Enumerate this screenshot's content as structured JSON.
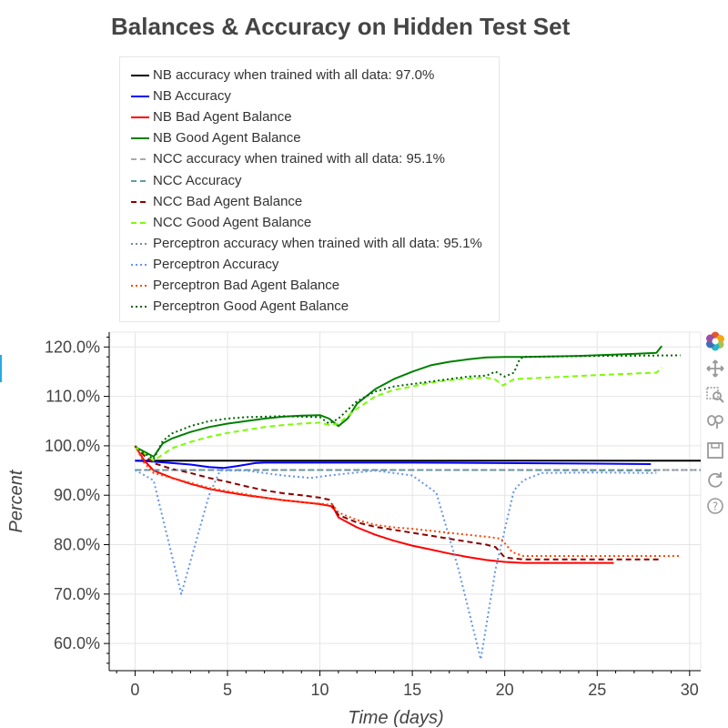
{
  "chart_data": {
    "type": "line",
    "title": "Balances & Accuracy on Hidden Test Set",
    "xlabel": "Time (days)",
    "ylabel": "Percent",
    "xlim": [
      -1.4,
      30.6
    ],
    "ylim": [
      54.5,
      123.0
    ],
    "x_ticks": [
      0,
      5,
      10,
      15,
      20,
      25,
      30
    ],
    "y_ticks": [
      60,
      70,
      80,
      90,
      100,
      110,
      120
    ],
    "y_tick_suffix": "%",
    "grid": true,
    "legend_position": "top-left, above plot",
    "series": [
      {
        "name": "NB accuracy when trained with all data: 97.0%",
        "color": "#000000",
        "dash": "solid",
        "points": [
          [
            0,
            97.0
          ],
          [
            30.6,
            97.0
          ]
        ]
      },
      {
        "name": "NB Accuracy",
        "color": "#0000ff",
        "dash": "solid",
        "points": [
          [
            0,
            97.0
          ],
          [
            1,
            96.8
          ],
          [
            2,
            96.5
          ],
          [
            3,
            96.2
          ],
          [
            4,
            95.7
          ],
          [
            4.8,
            95.5
          ],
          [
            5.5,
            95.9
          ],
          [
            6.5,
            96.5
          ],
          [
            7,
            96.6
          ],
          [
            10,
            96.6
          ],
          [
            15,
            96.6
          ],
          [
            20,
            96.5
          ],
          [
            25,
            96.4
          ],
          [
            27.9,
            96.3
          ]
        ]
      },
      {
        "name": "NB Bad Agent Balance",
        "color": "#ff0000",
        "dash": "solid",
        "points": [
          [
            0,
            100.0
          ],
          [
            0.5,
            97.0
          ],
          [
            1,
            95.0
          ],
          [
            2,
            93.5
          ],
          [
            3,
            92.3
          ],
          [
            4,
            91.3
          ],
          [
            5,
            90.6
          ],
          [
            6,
            90.0
          ],
          [
            7,
            89.5
          ],
          [
            8,
            89.0
          ],
          [
            9,
            88.6
          ],
          [
            10,
            88.2
          ],
          [
            10.6,
            87.8
          ],
          [
            10.8,
            87.0
          ],
          [
            11,
            85.5
          ],
          [
            12,
            83.5
          ],
          [
            13,
            82.0
          ],
          [
            14,
            80.8
          ],
          [
            15,
            79.8
          ],
          [
            16,
            79.0
          ],
          [
            17,
            78.2
          ],
          [
            18,
            77.5
          ],
          [
            19,
            76.9
          ],
          [
            20,
            76.5
          ],
          [
            21,
            76.3
          ],
          [
            25.9,
            76.3
          ]
        ]
      },
      {
        "name": "NB Good Agent Balance",
        "color": "#008000",
        "dash": "solid",
        "points": [
          [
            0,
            99.8
          ],
          [
            0.5,
            98.8
          ],
          [
            1,
            97.8
          ],
          [
            1.5,
            100.5
          ],
          [
            2,
            101.5
          ],
          [
            3,
            102.8
          ],
          [
            4,
            103.8
          ],
          [
            5,
            104.5
          ],
          [
            6,
            105.0
          ],
          [
            7,
            105.5
          ],
          [
            8,
            105.9
          ],
          [
            9,
            106.1
          ],
          [
            10,
            106.2
          ],
          [
            10.5,
            105.5
          ],
          [
            11,
            104.0
          ],
          [
            11.5,
            105.5
          ],
          [
            12,
            108.5
          ],
          [
            13,
            111.5
          ],
          [
            14,
            113.5
          ],
          [
            15,
            115.0
          ],
          [
            16,
            116.3
          ],
          [
            17,
            117.0
          ],
          [
            18,
            117.5
          ],
          [
            19,
            117.9
          ],
          [
            20,
            118.0
          ],
          [
            21,
            118.0
          ],
          [
            24,
            118.2
          ],
          [
            27,
            118.6
          ],
          [
            28.2,
            118.8
          ],
          [
            28.5,
            120.2
          ]
        ]
      },
      {
        "name": "NCC accuracy when trained with all data: 95.1%",
        "color": "#a9a9a9",
        "dash": "dashed",
        "points": [
          [
            0,
            95.1
          ],
          [
            30.6,
            95.1
          ]
        ]
      },
      {
        "name": "NCC Accuracy",
        "color": "#5f9ea0",
        "dash": "dashed",
        "points": [
          [
            0,
            95.1
          ],
          [
            10,
            95.1
          ],
          [
            20,
            95.1
          ],
          [
            28.2,
            95.0
          ]
        ]
      },
      {
        "name": "NCC Bad Agent Balance",
        "color": "#8b0000",
        "dash": "dashed",
        "points": [
          [
            0,
            100.0
          ],
          [
            0.5,
            98.0
          ],
          [
            1,
            96.5
          ],
          [
            2,
            95.3
          ],
          [
            3,
            94.5
          ],
          [
            4,
            93.5
          ],
          [
            5,
            92.7
          ],
          [
            6,
            91.8
          ],
          [
            7,
            91.0
          ],
          [
            8,
            90.4
          ],
          [
            9,
            90.0
          ],
          [
            10,
            89.5
          ],
          [
            10.5,
            89.1
          ],
          [
            11,
            86.0
          ],
          [
            12,
            84.5
          ],
          [
            13,
            83.6
          ],
          [
            14,
            83.0
          ],
          [
            15,
            82.4
          ],
          [
            16,
            81.8
          ],
          [
            17,
            81.2
          ],
          [
            18,
            80.6
          ],
          [
            19,
            80.0
          ],
          [
            19.5,
            79.5
          ],
          [
            20,
            77.4
          ],
          [
            21,
            77.0
          ],
          [
            28.5,
            77.0
          ]
        ]
      },
      {
        "name": "NCC Good Agent Balance",
        "color": "#7cfc00",
        "dash": "dashed",
        "points": [
          [
            0,
            99.8
          ],
          [
            0.5,
            98.5
          ],
          [
            1,
            97.0
          ],
          [
            2,
            99.5
          ],
          [
            3,
            100.8
          ],
          [
            4,
            101.8
          ],
          [
            5,
            102.6
          ],
          [
            6,
            103.2
          ],
          [
            7,
            103.8
          ],
          [
            8,
            104.2
          ],
          [
            9,
            104.5
          ],
          [
            10,
            104.7
          ],
          [
            10.5,
            104.2
          ],
          [
            11,
            104.5
          ],
          [
            12,
            107.5
          ],
          [
            13,
            110.0
          ],
          [
            14,
            111.3
          ],
          [
            15,
            112.0
          ],
          [
            16,
            112.8
          ],
          [
            17,
            113.3
          ],
          [
            18,
            113.6
          ],
          [
            19,
            113.8
          ],
          [
            19.5,
            113.4
          ],
          [
            19.9,
            112.2
          ],
          [
            20.5,
            113.5
          ],
          [
            25,
            114.3
          ],
          [
            28.2,
            114.8
          ],
          [
            28.5,
            115.8
          ]
        ]
      },
      {
        "name": "Perceptron accuracy when trained with all data: 95.1%",
        "color": "#778899",
        "dash": "dotted",
        "points": [
          [
            0,
            95.1
          ],
          [
            30.6,
            95.1
          ]
        ]
      },
      {
        "name": "Perceptron Accuracy",
        "color": "#6495ed",
        "dash": "dotted",
        "points": [
          [
            0,
            95.1
          ],
          [
            1,
            93.0
          ],
          [
            2.5,
            70.0
          ],
          [
            4,
            90.0
          ],
          [
            4.6,
            95.0
          ],
          [
            6,
            95.0
          ],
          [
            8,
            94.0
          ],
          [
            9.5,
            93.5
          ],
          [
            10.5,
            94.0
          ],
          [
            13,
            95.0
          ],
          [
            15,
            94.0
          ],
          [
            16.3,
            90.5
          ],
          [
            17.5,
            75.0
          ],
          [
            18.7,
            56.8
          ],
          [
            19.5,
            75.0
          ],
          [
            20.5,
            91.0
          ],
          [
            21,
            93.0
          ],
          [
            22,
            94.5
          ],
          [
            25,
            94.6
          ],
          [
            28.2,
            94.5
          ]
        ]
      },
      {
        "name": "Perceptron Bad Agent Balance",
        "color": "#ff4500",
        "dash": "dotted",
        "points": [
          [
            0,
            100.0
          ],
          [
            0.5,
            96.5
          ],
          [
            1,
            94.5
          ],
          [
            2,
            93.5
          ],
          [
            3,
            92.5
          ],
          [
            4,
            91.5
          ],
          [
            5,
            90.8
          ],
          [
            6,
            90.2
          ],
          [
            7,
            89.5
          ],
          [
            8,
            89.0
          ],
          [
            9,
            88.6
          ],
          [
            10,
            88.3
          ],
          [
            10.7,
            88.0
          ],
          [
            11,
            86.5
          ],
          [
            12,
            85.0
          ],
          [
            13,
            84.0
          ],
          [
            14,
            83.5
          ],
          [
            15,
            83.2
          ],
          [
            16,
            82.8
          ],
          [
            17,
            82.4
          ],
          [
            18,
            82.0
          ],
          [
            19,
            81.6
          ],
          [
            19.8,
            81.2
          ],
          [
            20.4,
            78.5
          ],
          [
            21,
            77.7
          ],
          [
            25,
            77.7
          ],
          [
            29.5,
            77.7
          ]
        ]
      },
      {
        "name": "Perceptron Good Agent Balance",
        "color": "#006400",
        "dash": "dotted",
        "points": [
          [
            0,
            99.9
          ],
          [
            0.5,
            98.5
          ],
          [
            1,
            97.3
          ],
          [
            1.5,
            101.0
          ],
          [
            2,
            102.5
          ],
          [
            3,
            104.0
          ],
          [
            4,
            105.0
          ],
          [
            5,
            105.5
          ],
          [
            6,
            105.8
          ],
          [
            7,
            105.9
          ],
          [
            8,
            106.0
          ],
          [
            9,
            105.9
          ],
          [
            10,
            105.8
          ],
          [
            10.5,
            104.5
          ],
          [
            11,
            105.5
          ],
          [
            12,
            109.0
          ],
          [
            13,
            111.0
          ],
          [
            14,
            112.0
          ],
          [
            15,
            112.5
          ],
          [
            16,
            113.0
          ],
          [
            17,
            113.5
          ],
          [
            18,
            114.0
          ],
          [
            19,
            114.2
          ],
          [
            19.5,
            115.0
          ],
          [
            20,
            114.0
          ],
          [
            20.5,
            114.8
          ],
          [
            20.8,
            117.5
          ],
          [
            21,
            118.0
          ],
          [
            25,
            118.2
          ],
          [
            29.5,
            118.3
          ]
        ]
      }
    ]
  },
  "toolbar": {
    "tools": [
      {
        "name": "bokeh-logo-icon"
      },
      {
        "name": "pan-icon"
      },
      {
        "name": "box-zoom-icon"
      },
      {
        "name": "wheel-zoom-icon"
      },
      {
        "name": "save-icon"
      },
      {
        "name": "reset-icon"
      },
      {
        "name": "help-icon"
      }
    ]
  }
}
